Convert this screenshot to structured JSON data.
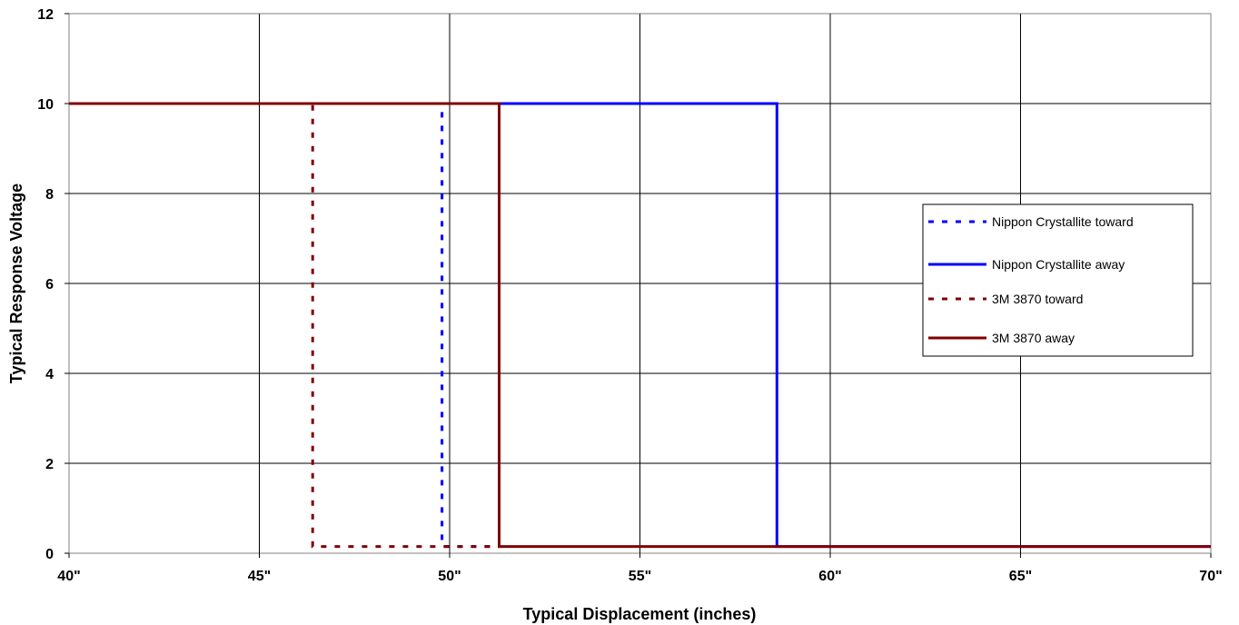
{
  "chart_data": {
    "type": "line",
    "xlabel": "Typical Displacement (inches)",
    "ylabel": "Typical Response Voltage",
    "xlim": [
      40,
      70
    ],
    "ylim": [
      0,
      12
    ],
    "x_ticks": [
      {
        "value": 40,
        "label": "40\""
      },
      {
        "value": 45,
        "label": "45\""
      },
      {
        "value": 50,
        "label": "50\""
      },
      {
        "value": 55,
        "label": "55\""
      },
      {
        "value": 60,
        "label": "60\""
      },
      {
        "value": 65,
        "label": "65\""
      },
      {
        "value": 70,
        "label": "70\""
      }
    ],
    "y_ticks": [
      {
        "value": 0,
        "label": "0"
      },
      {
        "value": 2,
        "label": "2"
      },
      {
        "value": 4,
        "label": "4"
      },
      {
        "value": 6,
        "label": "6"
      },
      {
        "value": 8,
        "label": "8"
      },
      {
        "value": 10,
        "label": "10"
      },
      {
        "value": 12,
        "label": "12"
      }
    ],
    "grid": true,
    "legend_position": "right",
    "series": [
      {
        "name": "Nippon Crystallite toward",
        "color": "#0000ff",
        "style": "dashed",
        "x": [
          40,
          49.8,
          49.8,
          51.3
        ],
        "y": [
          10,
          10,
          0.15,
          0.15
        ]
      },
      {
        "name": "Nippon Crystallite away",
        "color": "#0000ff",
        "style": "solid",
        "x": [
          40,
          58.6,
          58.6,
          70
        ],
        "y": [
          10,
          10,
          0.15,
          0.15
        ]
      },
      {
        "name": "3M 3870 toward",
        "color": "#800000",
        "style": "dashed",
        "x": [
          40,
          46.4,
          46.4,
          51.3
        ],
        "y": [
          10,
          10,
          0.15,
          0.15
        ]
      },
      {
        "name": "3M 3870 away",
        "color": "#800000",
        "style": "solid",
        "x": [
          40,
          51.3,
          51.3,
          70
        ],
        "y": [
          10,
          10,
          0.15,
          0.15
        ]
      }
    ]
  }
}
